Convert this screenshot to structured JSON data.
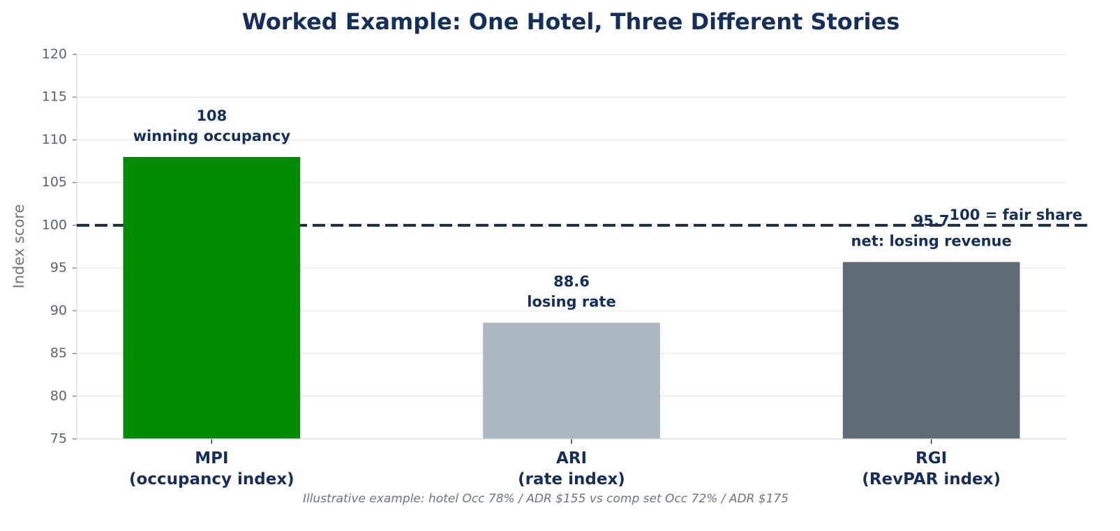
{
  "chart_data": {
    "type": "bar",
    "title": "Worked Example: One Hotel, Three Different Stories",
    "ylabel": "Index score",
    "footnote": "Illustrative example: hotel Occ 78% / ADR $155 vs comp set Occ 72% / ADR $175",
    "categories": [
      "MPI\n(occupancy index)",
      "ARI\n(rate index)",
      "RGI\n(RevPAR index)"
    ],
    "values": [
      108,
      88.6,
      95.7
    ],
    "annotations": [
      "winning occupancy",
      "losing rate",
      "net: losing revenue"
    ],
    "colors": [
      "#008b00",
      "#adb7bf",
      "#5f6b74"
    ],
    "reference_line": {
      "value": 100,
      "label": "100 = fair share"
    },
    "ylim": [
      75,
      120
    ],
    "yticks": [
      75,
      80,
      85,
      90,
      95,
      100,
      105,
      110,
      115,
      120
    ],
    "grid": true
  }
}
